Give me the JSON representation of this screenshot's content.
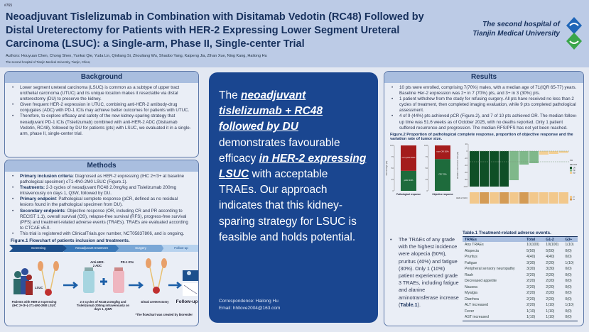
{
  "header": {
    "number": "#765",
    "title": "Neoadjuvant Tislelizumab in Combination with Disitamab Vedotin (RC48) Followed by Distal Ureterectomy for Patients with HER-2 Expressing Lower Segment Ureteral Carcinoma (LSUC): a Single-arm, Phase II, Single-center Trial",
    "authors": "Authors: Houyuan Chen, Chong Shen, Yunkai Qie, Yuda Lin, Qinliang Si, Zhouliang Wu, Shaobo Yang, Kaipeng Jia, Zihan Xue, Ning Kang, Hailong Hu",
    "affiliation": "The second hospital of Tianjin Medical University, Tianjin, China;",
    "hospital_line1": "The second hospital of",
    "hospital_line2": "Tianjin Medical University"
  },
  "background": {
    "title": "Background",
    "items": [
      "Lower segment ureteral carcinoma (LSUC) is common as a  subtype of upper tract urothelial carcinoma (UTUC) and its unique location makes it resectable via distal ureterectomy (DU) to preserve the kidney.",
      "Given frequent HER-2 expression in UTUC, combining anti-HER-2 antibody-drug conjugates (ADC) with PD-1 ICIs may achieve better outcomes for patients with UTUC.",
      "Therefore, to explore efficacy and safety of the new kidney-sparing strategy that neoadjuvant PD-1 ICIs (Tislelizumab) combined with anti-HER-2 ADC (Disitamab Vedotin, RC48), followed by DU for patients (pts) with LSUC, we evaluated it in a single-arm, phase II, single-center trial."
    ]
  },
  "methods": {
    "title": "Methods",
    "items": [
      {
        "label": "Primary inclusion criteria",
        "text": ": Diagnosed as HER-2 expressing (IHC 2+/3+ at baseline pathological specimen) cT1-4N0-2M0 LSUC (Figure.1)."
      },
      {
        "label": "Treatments:",
        "text": " 2-3 cycles of neoadjuvant RC48 2.0mg/kg and Tislelizumab 200mg intravenously on days 1, Q3W, followed by DU."
      },
      {
        "label": "Primary endpoint",
        "text": ": Pathological complete response (pCR, defined as no residual lesions found in the pathological specimen from DU)."
      },
      {
        "label": "Secondary endpoints",
        "text": ": Objective response (OR, including CR and PR according to RECIST 1.1), overall survival (OS), relapse-free survival (RFS), progress-free survival (PFS) and treatment-related adverse events (TRAEs). TRAEs are evaluated according to CTCAE v5.0."
      },
      {
        "label": "",
        "text": "This trial is registered with ClinicalTrials.gov number, NCT05837806, and is ongoing."
      }
    ],
    "figure_title": "Figure.1 Flowchart of patients inclusion and treatments.",
    "flow": {
      "steps": [
        "Screening",
        "Neoadjuvant treatment",
        "Surgery",
        "Follow-up"
      ],
      "lsuc": "LSUC",
      "adc": "Anti-HER-2 ADC",
      "ici": "PD-1 ICIs",
      "patients": "Patients with HER-2 expressing (IHC 2+/3+) cT1-4N0-2M0 LSUC",
      "regimen": "2-3 cycles of RC48 2.0mg/kg and Tislelizumab 200mg intravenously on days 1, Q3W",
      "surgery": "Distal ureterectomy",
      "followup": "Follow-up",
      "credit": "*The flowchart was created by biorender"
    }
  },
  "conclusion": {
    "p1": "The ",
    "h1": "neoadjuvant tislelizumab + RC48 followed by DU",
    "p2": " demonstrates favourable efficacy ",
    "h2": "in HER-2 expressing LSUC",
    "p3": " with acceptable TRAEs. Our approach indicates that this kidney-sparing strategy for LSUC is feasible and holds potential.",
    "correspondence": "Correspondence: Hailong Hu",
    "email": "Email: hhllove2004@163.com"
  },
  "results": {
    "title": "Results",
    "items": [
      "10 pts were enrolled, comprising 7(70%) males, with a median age of 71(IQR 65-77) years. Baseline Her-2 expression was 2+ in 7 (70%) pts, and 3+ in 3 (30%) pts.",
      "1 patient withdrew from the study for refusing surgery. All pts have received no less than 2 cycles of treatment, then completed imaging evaluation, while 9 pts completed pathological assessment.",
      "4 of 9 (44%) pts achieved pCR (Figure.2), and 7 of 10 pts achieved OR. The median follow-up time was 51.6 weeks as of October 2025, with no deaths reported. Only 1 patient suffered recurrence and progression. The median RFS/PFS has not yet been reached."
    ],
    "figure_title": "Figure.2 Proportion of pathological complete response, proportion of objective response and the variation rate of tumor size.",
    "trae_text": "The TRAEs of any grade with the highest incidence were alopecia (50%), pruritus (40%) and fatigue (30%). Only 1 (10%) patient experienced grade 3 TRAEs, including fatigue and alanine aminotransferase increase (",
    "trae_ref": "Table.1",
    "trae_end": ").",
    "table_title": "Table.1 Treatment-related adverse events.",
    "table_headers": [
      "TRAEs",
      "Total",
      "G1-2",
      "G3+"
    ],
    "table_rows": [
      [
        "Any TRAEs",
        "10(100)",
        "10(100)",
        "1(10)"
      ],
      [
        "Alopecia",
        "5(50)",
        "5(50)",
        "0(0)"
      ],
      [
        "Pruritus",
        "4(40)",
        "4(40)",
        "0(0)"
      ],
      [
        "Fatigue",
        "3(30)",
        "2(20)",
        "1(10)"
      ],
      [
        "Peripheral sensory neuropathy",
        "3(30)",
        "3(30)",
        "0(0)"
      ],
      [
        "Rash",
        "2(20)",
        "2(20)",
        "0(0)"
      ],
      [
        "Decreased appetite",
        "2(20)",
        "2(20)",
        "0(0)"
      ],
      [
        "Nausea",
        "2(20)",
        "2(20)",
        "0(0)"
      ],
      [
        "Myalgia",
        "2(20)",
        "2(20)",
        "0(0)"
      ],
      [
        "Diarrhea",
        "2(20)",
        "2(20)",
        "0(0)"
      ],
      [
        "ALT increased",
        "2(20)",
        "1(10)",
        "1(10)"
      ],
      [
        "Fever",
        "1(10)",
        "1(10)",
        "0(0)"
      ],
      [
        "AST increased",
        "1(10)",
        "1(10)",
        "0(0)"
      ]
    ]
  },
  "chart_data": [
    {
      "type": "bar",
      "stacked": true,
      "categories": [
        "Pathological response"
      ],
      "ylabel": "Percentage (%)",
      "ylim": [
        0,
        100
      ],
      "yticks": [
        0,
        25,
        50,
        75,
        100
      ],
      "series": [
        {
          "name": "pCR",
          "values": [
            44
          ],
          "label": "pCR 44%",
          "color": "#1e6b3c"
        },
        {
          "name": "non-pCR",
          "values": [
            56
          ],
          "label": "non-pCR 56%",
          "color": "#a41c1c"
        }
      ]
    },
    {
      "type": "bar",
      "stacked": true,
      "categories": [
        "Objective response"
      ],
      "ylim": [
        0,
        100
      ],
      "yticks": [
        0,
        25,
        50,
        75,
        100
      ],
      "series": [
        {
          "name": "OR",
          "values": [
            70
          ],
          "label": "OR 70%",
          "color": "#1e6b3c"
        },
        {
          "name": "non-OR",
          "values": [
            30
          ],
          "label": "non-OR 30%",
          "color": "#a41c1c"
        }
      ]
    },
    {
      "type": "bar",
      "title": "",
      "ylabel": "Variation rate of tumor size (%)",
      "ylim": [
        -100,
        20
      ],
      "yticks": [
        -100,
        -80,
        -60,
        -40,
        -20,
        0,
        20
      ],
      "reference_lines": [
        0,
        -30
      ],
      "reference_label": "PR",
      "values": [
        -100,
        -100,
        -100,
        -100,
        -82,
        -38,
        -34,
        -10,
        -8,
        -5
      ],
      "recist": [
        "CR",
        "CR",
        "CR",
        "CR",
        "PR",
        "PR",
        "PR",
        "SD",
        "SD",
        "SD"
      ],
      "legend_title": "RECIST",
      "legend": {
        "CR": "#0f4f26",
        "PR": "#7fb88a",
        "SD": "#f3cf95"
      },
      "her2_label": "HER-2 (IHC)",
      "her2": [
        "2+",
        "3+",
        "2+",
        "3+",
        "2+",
        "3+",
        "2+",
        "2+",
        "2+",
        "2+"
      ],
      "her2_colors": {
        "2+": "#f2c88c",
        "3+": "#d49b55"
      }
    }
  ]
}
